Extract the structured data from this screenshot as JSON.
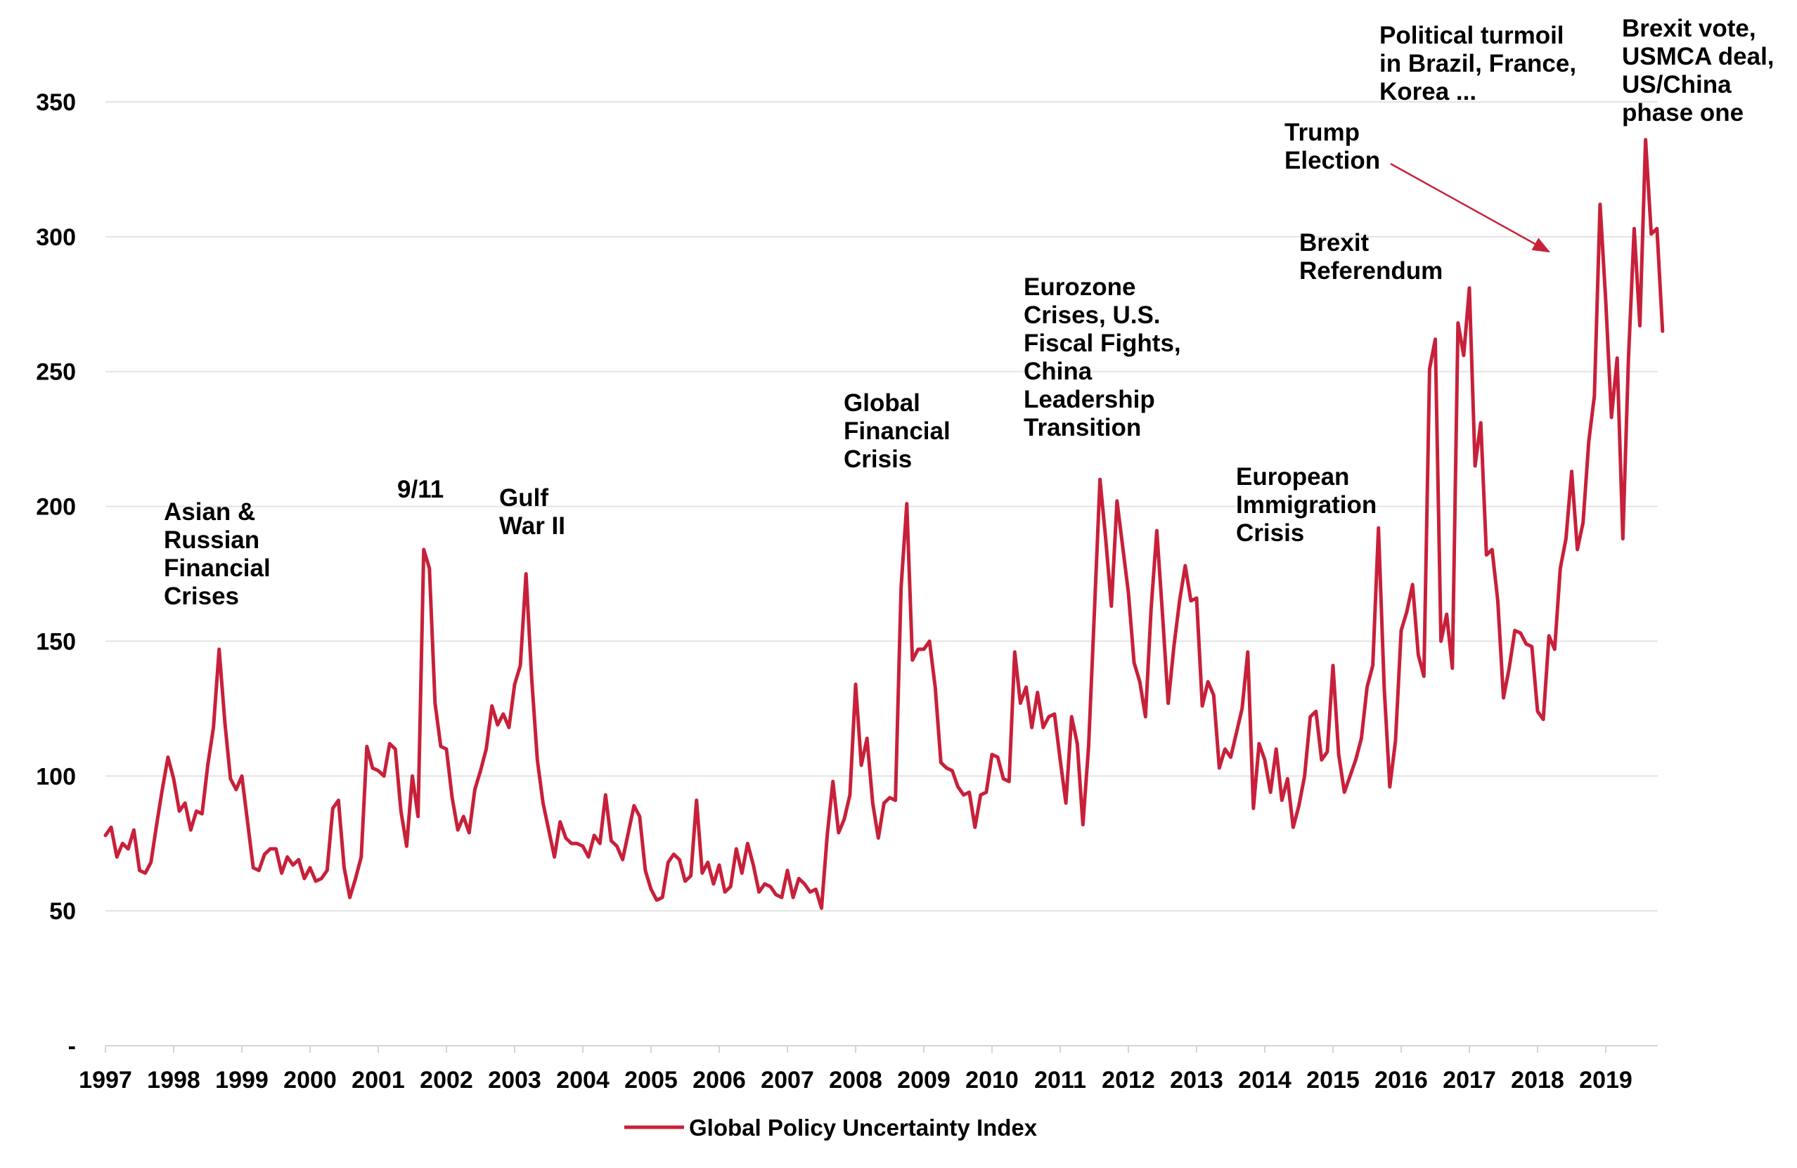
{
  "chart_data": {
    "type": "line",
    "title": "",
    "xlabel": "",
    "ylabel": "",
    "x_start": "1997-01",
    "x_end": "2019-12",
    "x_frequency": "monthly",
    "xlim": [
      "1997-01",
      "2019-12"
    ],
    "ylim": [
      0,
      350
    ],
    "y_ticks": [
      {
        "value": 0,
        "label": "-"
      },
      {
        "value": 50,
        "label": "50"
      },
      {
        "value": 100,
        "label": "100"
      },
      {
        "value": 150,
        "label": "150"
      },
      {
        "value": 200,
        "label": "200"
      },
      {
        "value": 250,
        "label": "250"
      },
      {
        "value": 300,
        "label": "300"
      },
      {
        "value": 350,
        "label": "350"
      }
    ],
    "x_tick_labels": [
      "1997",
      "1998",
      "1999",
      "2000",
      "2001",
      "2002",
      "2003",
      "2004",
      "2005",
      "2006",
      "2007",
      "2008",
      "2009",
      "2010",
      "2011",
      "2012",
      "2013",
      "2014",
      "2015",
      "2016",
      "2017",
      "2018",
      "2019"
    ],
    "grid": true,
    "legend_position": "bottom-center",
    "series": [
      {
        "name": "Global Policy Uncertainty Index",
        "color": "#c8203a",
        "values": [
          78,
          81,
          70,
          75,
          73,
          80,
          65,
          64,
          68,
          82,
          95,
          107,
          99,
          87,
          90,
          80,
          87,
          86,
          104,
          118,
          147,
          120,
          99,
          95,
          100,
          83,
          66,
          65,
          71,
          73,
          73,
          64,
          70,
          67,
          69,
          62,
          66,
          61,
          62,
          65,
          88,
          91,
          66,
          55,
          62,
          70,
          111,
          103,
          102,
          100,
          112,
          110,
          87,
          74,
          100,
          85,
          184,
          177,
          127,
          111,
          110,
          92,
          80,
          85,
          79,
          95,
          102,
          110,
          126,
          119,
          123,
          118,
          134,
          141,
          175,
          136,
          106,
          90,
          80,
          70,
          83,
          77,
          75,
          75,
          74,
          70,
          78,
          75,
          93,
          76,
          74,
          69,
          79,
          89,
          85,
          65,
          58,
          54,
          55,
          68,
          71,
          69,
          61,
          63,
          91,
          64,
          68,
          60,
          67,
          57,
          59,
          73,
          64,
          75,
          67,
          57,
          60,
          59,
          56,
          55,
          65,
          55,
          62,
          60,
          57,
          58,
          51,
          78,
          98,
          79,
          84,
          93,
          134,
          104,
          114,
          90,
          77,
          90,
          92,
          91,
          170,
          201,
          143,
          147,
          147,
          150,
          133,
          105,
          103,
          102,
          96,
          93,
          94,
          81,
          93,
          94,
          108,
          107,
          99,
          98,
          146,
          127,
          133,
          118,
          131,
          118,
          122,
          123,
          106,
          90,
          122,
          112,
          82,
          111,
          160,
          210,
          188,
          163,
          202,
          185,
          168,
          142,
          135,
          122,
          162,
          191,
          160,
          127,
          148,
          165,
          178,
          165,
          166,
          126,
          135,
          130,
          103,
          110,
          107,
          116,
          125,
          146,
          88,
          112,
          106,
          94,
          110,
          91,
          99,
          81,
          89,
          100,
          122,
          124,
          106,
          109,
          141,
          108,
          94,
          100,
          106,
          114,
          133,
          141,
          192,
          133,
          96,
          113,
          154,
          161,
          171,
          145,
          137,
          251,
          262,
          150,
          160,
          140,
          268,
          256,
          281,
          215,
          231,
          182,
          184,
          165,
          129,
          140,
          154,
          153,
          149,
          148,
          124,
          121,
          152,
          147,
          177,
          188,
          213,
          184,
          194,
          224,
          241,
          312,
          276,
          233,
          255,
          188,
          255,
          303,
          267,
          336,
          301,
          303,
          265
        ]
      }
    ],
    "annotations": [
      {
        "lines": [
          "Asian &",
          "Russian",
          "Financial",
          "Crises"
        ]
      },
      {
        "lines": [
          "9/11"
        ]
      },
      {
        "lines": [
          "Gulf",
          "War II"
        ]
      },
      {
        "lines": [
          "Global",
          "Financial",
          "Crisis"
        ]
      },
      {
        "lines": [
          "Eurozone",
          "Crises, U.S.",
          "Fiscal Fights,",
          "China",
          "Leadership",
          "Transition"
        ]
      },
      {
        "lines": [
          "European",
          "Immigration",
          "Crisis"
        ]
      },
      {
        "lines": [
          "Brexit",
          "Referendum"
        ]
      },
      {
        "lines": [
          "Trump",
          "Election"
        ]
      },
      {
        "lines": [
          "Political turmoil",
          "in Brazil, France,",
          "Korea ..."
        ]
      },
      {
        "lines": [
          "Brexit vote,",
          "USMCA deal,",
          "US/China",
          "phase one"
        ]
      }
    ]
  }
}
